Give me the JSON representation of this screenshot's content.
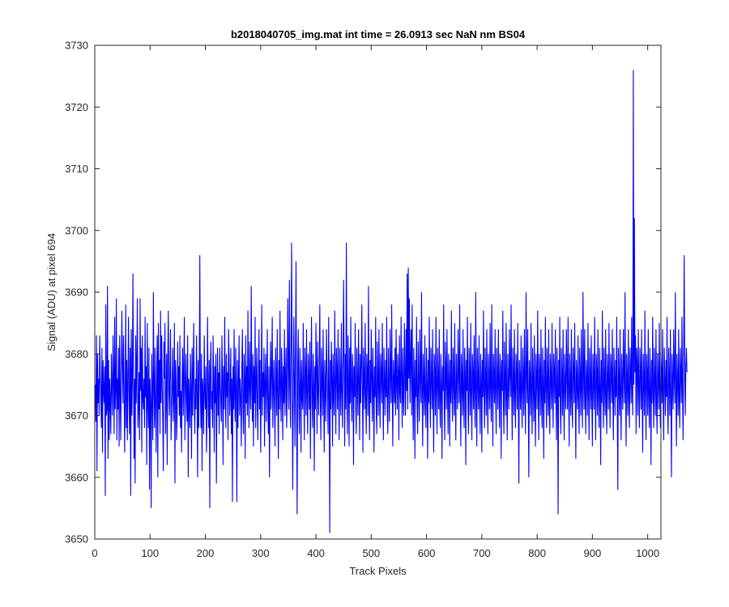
{
  "chart_data": {
    "type": "line",
    "title": "b2018040705_img.mat int time = 26.0913 sec  NaN nm BS04",
    "xlabel": "Track Pixels",
    "ylabel": "Signal (ADU) at pixel 694",
    "xlim": [
      0,
      1024
    ],
    "ylim": [
      3650,
      3730
    ],
    "xticks": [
      0,
      100,
      200,
      300,
      400,
      500,
      600,
      700,
      800,
      900,
      1000
    ],
    "yticks": [
      3650,
      3660,
      3670,
      3680,
      3690,
      3700,
      3710,
      3720,
      3730
    ],
    "grid": false,
    "legend": "none",
    "line_color": "#0000ff",
    "series": [
      {
        "x_start": 1,
        "x_step": 1,
        "values": [
          3675,
          3669,
          3683,
          3661,
          3680,
          3672,
          3676,
          3670,
          3683,
          3677,
          3673,
          3668,
          3681,
          3664,
          3679,
          3674,
          3672,
          3678,
          3657,
          3688,
          3670,
          3671,
          3691,
          3663,
          3679,
          3666,
          3676,
          3672,
          3667,
          3680,
          3674,
          3670,
          3683,
          3676,
          3667,
          3686,
          3671,
          3674,
          3689,
          3666,
          3676,
          3671,
          3681,
          3665,
          3683,
          3674,
          3666,
          3677,
          3687,
          3678,
          3672,
          3683,
          3675,
          3664,
          3673,
          3688,
          3668,
          3679,
          3666,
          3676,
          3686,
          3673,
          3667,
          3681,
          3657,
          3684,
          3670,
          3675,
          3693,
          3678,
          3663,
          3676,
          3659,
          3683,
          3672,
          3679,
          3689,
          3668,
          3671,
          3677,
          3666,
          3689,
          3674,
          3681,
          3664,
          3683,
          3673,
          3671,
          3676,
          3668,
          3686,
          3673,
          3678,
          3662,
          3685,
          3672,
          3668,
          3681,
          3658,
          3676,
          3672,
          3655,
          3680,
          3674,
          3666,
          3690,
          3675,
          3668,
          3681,
          3672,
          3664,
          3677,
          3683,
          3660,
          3685,
          3671,
          3679,
          3667,
          3687,
          3672,
          3683,
          3675,
          3669,
          3661,
          3682,
          3676,
          3685,
          3667,
          3673,
          3680,
          3662,
          3679,
          3687,
          3674,
          3670,
          3678,
          3684,
          3666,
          3671,
          3675,
          3681,
          3669,
          3673,
          3685,
          3659,
          3679,
          3676,
          3666,
          3670,
          3682,
          3673,
          3678,
          3670,
          3683,
          3668,
          3674,
          3664,
          3676,
          3681,
          3670,
          3677,
          3686,
          3666,
          3674,
          3680,
          3672,
          3669,
          3683,
          3660,
          3676,
          3672,
          3668,
          3680,
          3674,
          3663,
          3681,
          3670,
          3677,
          3685,
          3672,
          3667,
          3676,
          3671,
          3683,
          3674,
          3660,
          3679,
          3668,
          3677,
          3696,
          3674,
          3668,
          3680,
          3661,
          3676,
          3673,
          3667,
          3683,
          3674,
          3671,
          3678,
          3664,
          3670,
          3686,
          3674,
          3668,
          3679,
          3655,
          3677,
          3682,
          3671,
          3674,
          3668,
          3683,
          3676,
          3664,
          3678,
          3672,
          3680,
          3659,
          3674,
          3681,
          3670,
          3677,
          3667,
          3681,
          3675,
          3672,
          3669,
          3683,
          3676,
          3662,
          3678,
          3671,
          3686,
          3674,
          3668,
          3680,
          3673,
          3677,
          3666,
          3684,
          3679,
          3670,
          3674,
          3681,
          3667,
          3676,
          3656,
          3678,
          3671,
          3684,
          3673,
          3669,
          3681,
          3674,
          3656,
          3679,
          3668,
          3676,
          3683,
          3670,
          3676,
          3673,
          3665,
          3678,
          3684,
          3671,
          3667,
          3680,
          3676,
          3663,
          3683,
          3672,
          3678,
          3670,
          3687,
          3674,
          3668,
          3682,
          3675,
          3671,
          3691,
          3676,
          3669,
          3680,
          3665,
          3678,
          3672,
          3686,
          3668,
          3675,
          3681,
          3672,
          3666,
          3677,
          3684,
          3671,
          3679,
          3664,
          3674,
          3688,
          3670,
          3677,
          3673,
          3681,
          3665,
          3676,
          3680,
          3669,
          3674,
          3684,
          3671,
          3667,
          3678,
          3660,
          3675,
          3682,
          3671,
          3677,
          3686,
          3668,
          3674,
          3679,
          3672,
          3665,
          3681,
          3676,
          3670,
          3684,
          3673,
          3663,
          3679,
          3671,
          3687,
          3674,
          3669,
          3681,
          3676,
          3666,
          3678,
          3672,
          3684,
          3670,
          3676,
          3681,
          3668,
          3673,
          3689,
          3678,
          3671,
          3692,
          3675,
          3668,
          3681,
          3698,
          3679,
          3658,
          3672,
          3686,
          3676,
          3665,
          3680,
          3695,
          3670,
          3654,
          3678,
          3684,
          3672,
          3667,
          3681,
          3676,
          3664,
          3679,
          3673,
          3671,
          3685,
          3674,
          3666,
          3681,
          3677,
          3670,
          3684,
          3673,
          3667,
          3680,
          3676,
          3671,
          3682,
          3663,
          3677,
          3686,
          3672,
          3668,
          3680,
          3675,
          3661,
          3678,
          3671,
          3685,
          3677,
          3667,
          3682,
          3674,
          3670,
          3679,
          3688,
          3672,
          3666,
          3681,
          3676,
          3670,
          3684,
          3673,
          3664,
          3679,
          3675,
          3669,
          3684,
          3678,
          3672,
          3667,
          3686,
          3674,
          3651,
          3679,
          3671,
          3682,
          3676,
          3665,
          3680,
          3673,
          3670,
          3687,
          3675,
          3667,
          3681,
          3677,
          3671,
          3684,
          3673,
          3666,
          3681,
          3676,
          3670,
          3685,
          3674,
          3668,
          3679,
          3692,
          3678,
          3665,
          3680,
          3671,
          3698,
          3674,
          3667,
          3683,
          3676,
          3665,
          3681,
          3672,
          3686,
          3674,
          3669,
          3680,
          3677,
          3662,
          3678,
          3673,
          3685,
          3671,
          3667,
          3681,
          3675,
          3670,
          3684,
          3676,
          3666,
          3680,
          3672,
          3678,
          3688,
          3674,
          3664,
          3681,
          3676,
          3671,
          3685,
          3673,
          3667,
          3680,
          3677,
          3670,
          3691,
          3674,
          3666,
          3679,
          3672,
          3684,
          3676,
          3669,
          3681,
          3675,
          3664,
          3678,
          3673,
          3686,
          3671,
          3667,
          3682,
          3676,
          3670,
          3684,
          3674,
          3668,
          3680,
          3677,
          3672,
          3685,
          3674,
          3666,
          3681,
          3676,
          3670,
          3679,
          3673,
          3686,
          3671,
          3667,
          3681,
          3675,
          3669,
          3684,
          3677,
          3672,
          3688,
          3674,
          3665,
          3679,
          3676,
          3672,
          3681,
          3670,
          3684,
          3675,
          3671,
          3680,
          3677,
          3666,
          3683,
          3674,
          3672,
          3686,
          3676,
          3668,
          3681,
          3673,
          3670,
          3685,
          3677,
          3670,
          3684,
          3674,
          3693,
          3671,
          3694,
          3676,
          3689,
          3672,
          3679,
          3684,
          3670,
          3688,
          3674,
          3666,
          3681,
          3676,
          3663,
          3679,
          3673,
          3686,
          3671,
          3667,
          3682,
          3675,
          3669,
          3684,
          3677,
          3672,
          3690,
          3674,
          3665,
          3680,
          3676,
          3670,
          3683,
          3673,
          3668,
          3681,
          3675,
          3663,
          3679,
          3672,
          3686,
          3674,
          3668,
          3681,
          3676,
          3671,
          3684,
          3673,
          3664,
          3680,
          3677,
          3670,
          3686,
          3674,
          3667,
          3681,
          3676,
          3671,
          3684,
          3672,
          3668,
          3680,
          3675,
          3663,
          3678,
          3674,
          3688,
          3672,
          3666,
          3682,
          3677,
          3671,
          3684,
          3674,
          3667,
          3680,
          3676,
          3665,
          3679,
          3672,
          3687,
          3674,
          3669,
          3681,
          3676,
          3670,
          3685,
          3673,
          3666,
          3680,
          3675,
          3671,
          3684,
          3677,
          3672,
          3688,
          3674,
          3665,
          3680,
          3676,
          3670,
          3684,
          3673,
          3668,
          3681,
          3677,
          3662,
          3679,
          3674,
          3686,
          3671,
          3667,
          3681,
          3676,
          3670,
          3685,
          3674,
          3666,
          3680,
          3677,
          3671,
          3683,
          3673,
          3668,
          3690,
          3674,
          3665,
          3681,
          3676,
          3671,
          3683,
          3673,
          3667,
          3680,
          3676,
          3664,
          3679,
          3673,
          3687,
          3674,
          3668,
          3681,
          3676,
          3670,
          3684,
          3673,
          3667,
          3680,
          3676,
          3671,
          3685,
          3674,
          3669,
          3688,
          3675,
          3665,
          3680,
          3676,
          3672,
          3684,
          3673,
          3667,
          3681,
          3676,
          3671,
          3684,
          3675,
          3668,
          3680,
          3677,
          3663,
          3679,
          3674,
          3687,
          3672,
          3667,
          3682,
          3676,
          3670,
          3685,
          3673,
          3666,
          3680,
          3675,
          3671,
          3684,
          3677,
          3673,
          3688,
          3674,
          3666,
          3681,
          3676,
          3670,
          3684,
          3673,
          3668,
          3680,
          3677,
          3671,
          3685,
          3674,
          3659,
          3679,
          3676,
          3671,
          3683,
          3673,
          3668,
          3681,
          3676,
          3670,
          3684,
          3674,
          3667,
          3690,
          3677,
          3672,
          3684,
          3673,
          3660,
          3679,
          3676,
          3670,
          3685,
          3674,
          3667,
          3681,
          3676,
          3669,
          3683,
          3672,
          3665,
          3680,
          3676,
          3671,
          3687,
          3674,
          3666,
          3680,
          3677,
          3670,
          3684,
          3673,
          3668,
          3681,
          3675,
          3663,
          3679,
          3672,
          3686,
          3674,
          3668,
          3681,
          3676,
          3670,
          3684,
          3672,
          3667,
          3680,
          3676,
          3671,
          3685,
          3674,
          3668,
          3680,
          3677,
          3672,
          3684,
          3673,
          3666,
          3681,
          3676,
          3654,
          3679,
          3673,
          3686,
          3671,
          3667,
          3681,
          3676,
          3670,
          3684,
          3673,
          3666,
          3680,
          3675,
          3671,
          3684,
          3677,
          3671,
          3686,
          3674,
          3665,
          3680,
          3676,
          3670,
          3684,
          3673,
          3668,
          3681,
          3677,
          3672,
          3685,
          3674,
          3663,
          3679,
          3676,
          3671,
          3683,
          3673,
          3667,
          3681,
          3676,
          3670,
          3684,
          3674,
          3668,
          3690,
          3677,
          3671,
          3684,
          3673,
          3667,
          3679,
          3676,
          3670,
          3685,
          3674,
          3666,
          3681,
          3676,
          3671,
          3683,
          3673,
          3665,
          3680,
          3676,
          3671,
          3686,
          3674,
          3666,
          3680,
          3677,
          3670,
          3684,
          3673,
          3668,
          3681,
          3675,
          3662,
          3679,
          3672,
          3687,
          3674,
          3668,
          3681,
          3676,
          3670,
          3684,
          3672,
          3667,
          3680,
          3676,
          3671,
          3685,
          3674,
          3668,
          3680,
          3677,
          3672,
          3684,
          3673,
          3666,
          3681,
          3676,
          3670,
          3679,
          3673,
          3686,
          3671,
          3658,
          3681,
          3676,
          3670,
          3684,
          3673,
          3666,
          3680,
          3675,
          3671,
          3684,
          3677,
          3672,
          3690,
          3674,
          3665,
          3680,
          3676,
          3670,
          3684,
          3673,
          3668,
          3681,
          3677,
          3672,
          3686,
          3674,
          3670,
          3726,
          3675,
          3702,
          3677,
          3683,
          3667,
          3681,
          3678,
          3670,
          3684,
          3674,
          3668,
          3681,
          3677,
          3671,
          3684,
          3673,
          3664,
          3680,
          3676,
          3670,
          3687,
          3674,
          3666,
          3680,
          3677,
          3670,
          3684,
          3673,
          3668,
          3681,
          3675,
          3662,
          3679,
          3672,
          3686,
          3674,
          3668,
          3681,
          3676,
          3670,
          3684,
          3672,
          3667,
          3680,
          3676,
          3671,
          3685,
          3674,
          3668,
          3680,
          3677,
          3672,
          3684,
          3673,
          3666,
          3681,
          3676,
          3670,
          3679,
          3673,
          3686,
          3671,
          3667,
          3681,
          3676,
          3670,
          3684,
          3673,
          3660,
          3680,
          3675,
          3671,
          3684,
          3677,
          3672,
          3690,
          3674,
          3665,
          3680,
          3676,
          3670,
          3684,
          3673,
          3668,
          3681,
          3677,
          3672,
          3686,
          3674,
          3666,
          3680,
          3696,
          3677,
          3670,
          3678,
          3681,
          3677
        ]
      }
    ]
  }
}
